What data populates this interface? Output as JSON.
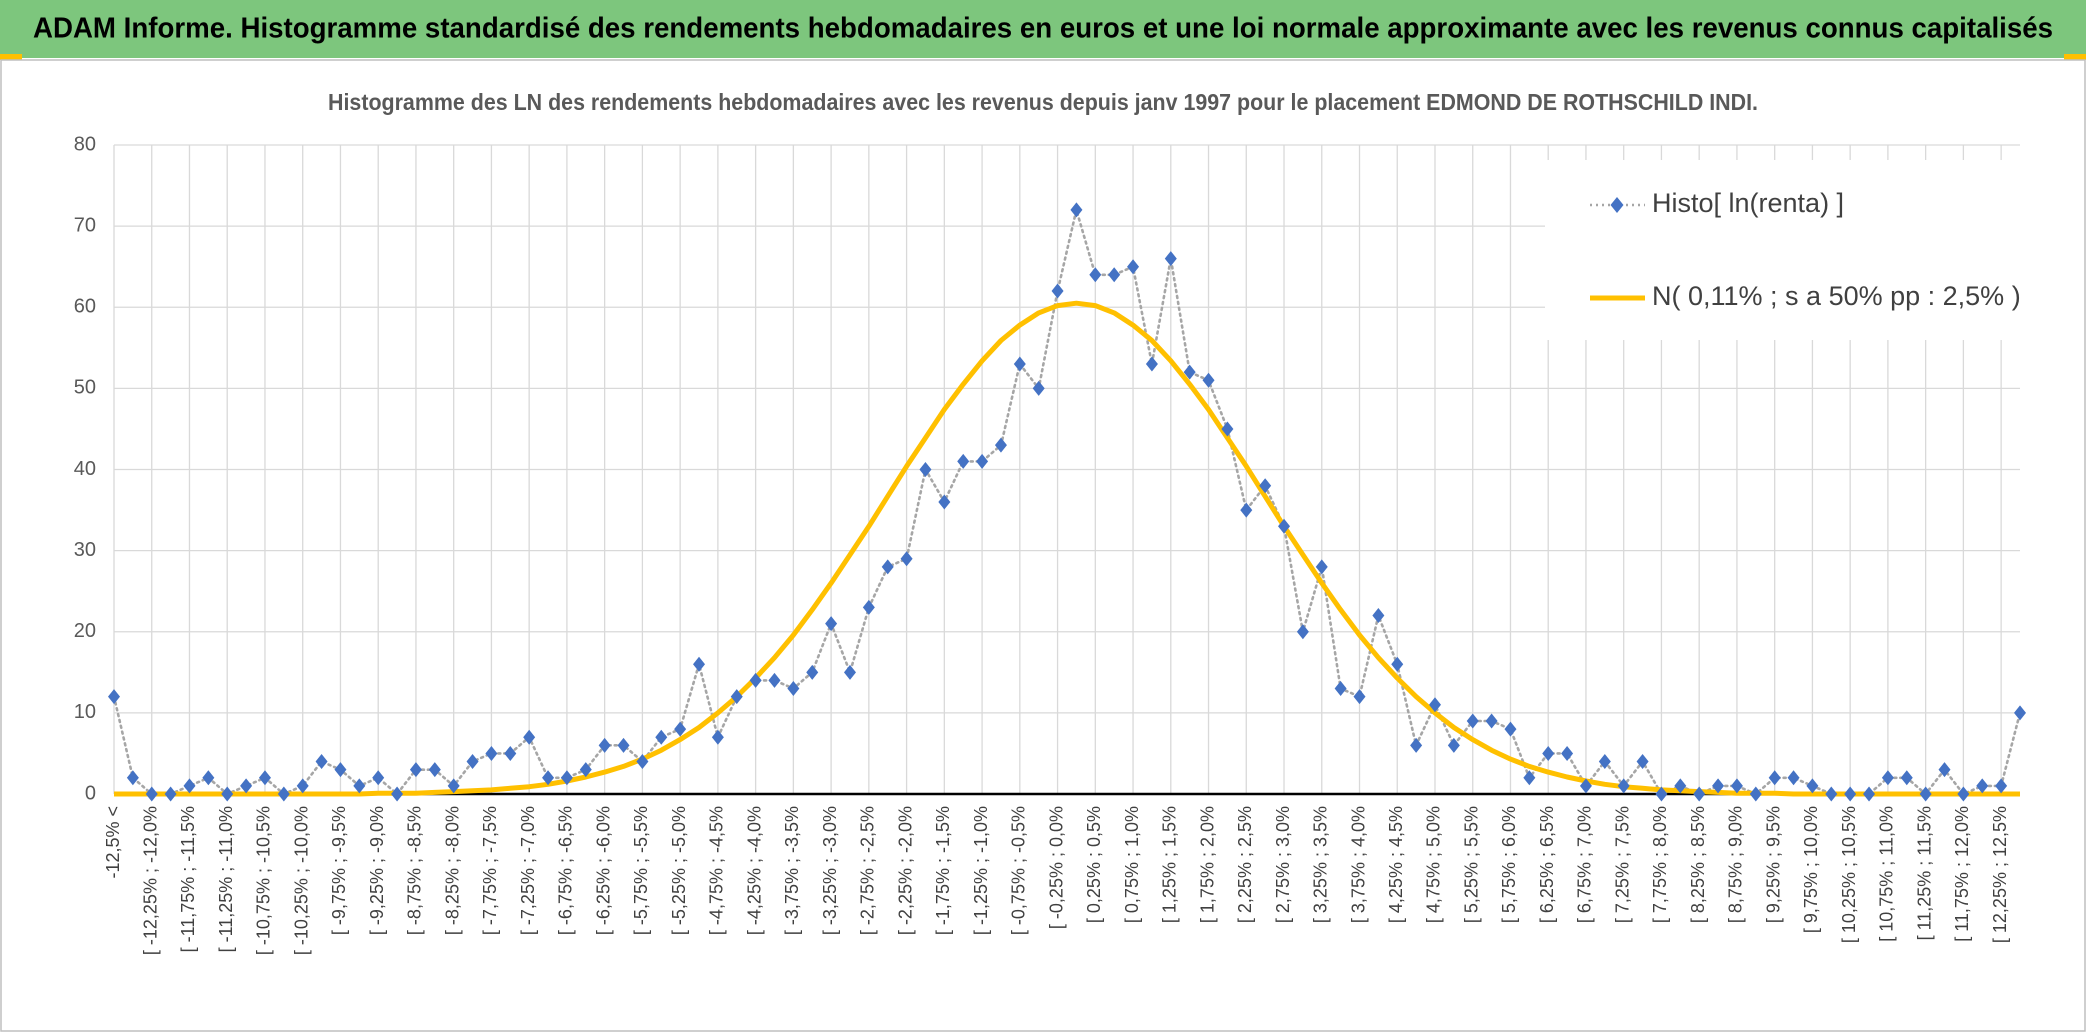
{
  "header": {
    "title": "ADAM Informe. Histogramme standardisé des rendements hebdomadaires en euros et une loi normale approximante avec les revenus connus capitalisés"
  },
  "chart_data": {
    "type": "line",
    "title": "Histogramme des LN des rendements hebdomadaires avec les revenus depuis janv 1997 pour le placement EDMOND DE ROTHSCHILD INDI.",
    "categories": [
      "-12,5% <",
      null,
      "[ -12,25% ; -12,0%",
      null,
      "[ -11,75% ; -11,5%",
      null,
      "[ -11,25% ; -11,0%",
      null,
      "[ -10,75% ; -10,5%",
      null,
      "[ -10,25% ; -10,0%",
      null,
      "[ -9,75% ; -9,5%",
      null,
      "[ -9,25% ; -9,0%",
      null,
      "[ -8,75% ; -8,5%",
      null,
      "[ -8,25% ; -8,0%",
      null,
      "[ -7,75% ; -7,5%",
      null,
      "[ -7,25% ; -7,0%",
      null,
      "[ -6,75% ; -6,5%",
      null,
      "[ -6,25% ; -6,0%",
      null,
      "[ -5,75% ; -5,5%",
      null,
      "[ -5,25% ; -5,0%",
      null,
      "[ -4,75% ; -4,5%",
      null,
      "[ -4,25% ; -4,0%",
      null,
      "[ -3,75% ; -3,5%",
      null,
      "[ -3,25% ; -3,0%",
      null,
      "[ -2,75% ; -2,5%",
      null,
      "[ -2,25% ; -2,0%",
      null,
      "[ -1,75% ; -1,5%",
      null,
      "[ -1,25% ; -1,0%",
      null,
      "[ -0,75% ; -0,5%",
      null,
      "[ -0,25% ; 0,0%",
      null,
      "[ 0,25% ; 0,5%",
      null,
      "[ 0,75% ; 1,0%",
      null,
      "[ 1,25% ; 1,5%",
      null,
      "[ 1,75% ; 2,0%",
      null,
      "[ 2,25% ; 2,5%",
      null,
      "[ 2,75% ; 3,0%",
      null,
      "[ 3,25% ; 3,5%",
      null,
      "[ 3,75% ; 4,0%",
      null,
      "[ 4,25% ; 4,5%",
      null,
      "[ 4,75% ; 5,0%",
      null,
      "[ 5,25% ; 5,5%",
      null,
      "[ 5,75% ; 6,0%",
      null,
      "[ 6,25% ; 6,5%",
      null,
      "[ 6,75% ; 7,0%",
      null,
      "[ 7,25% ; 7,5%",
      null,
      "[ 7,75% ; 8,0%",
      null,
      "[ 8,25% ; 8,5%",
      null,
      "[ 8,75% ; 9,0%",
      null,
      "[ 9,25% ; 9,5%",
      null,
      "[ 9,75% ; 10,0%",
      null,
      "[ 10,25% ; 10,5%",
      null,
      "[ 10,75% ; 11,0%",
      null,
      "[ 11,25% ; 11,5%",
      null,
      "[ 11,75% ; 12,0%",
      null,
      "[ 12,25% ; 12,5%",
      null
    ],
    "series": [
      {
        "name": "Histo[ ln(renta) ]",
        "color": "#4472c4",
        "line_color": "#a6a6a6",
        "values": [
          12,
          2,
          0,
          0,
          1,
          2,
          0,
          1,
          2,
          0,
          1,
          4,
          3,
          1,
          2,
          0,
          3,
          3,
          1,
          4,
          5,
          5,
          7,
          2,
          2,
          3,
          6,
          6,
          4,
          7,
          8,
          16,
          7,
          12,
          14,
          14,
          13,
          15,
          21,
          15,
          23,
          28,
          29,
          40,
          36,
          41,
          41,
          43,
          53,
          50,
          62,
          72,
          64,
          64,
          65,
          53,
          66,
          52,
          51,
          45,
          35,
          38,
          33,
          20,
          28,
          13,
          12,
          22,
          16,
          6,
          11,
          6,
          9,
          9,
          8,
          2,
          5,
          5,
          1,
          4,
          1,
          4,
          0,
          1,
          0,
          1,
          1,
          0,
          2,
          2,
          1,
          0,
          0,
          0,
          2,
          2,
          0,
          3,
          0,
          1,
          1,
          10
        ]
      },
      {
        "name": "N( 0,11% ; s a 50% pp : 2,5% )",
        "color": "#ffc000",
        "values": [
          0,
          0,
          0,
          0,
          0,
          0,
          0,
          0,
          0,
          0,
          0,
          0,
          0,
          0,
          0.1,
          0.1,
          0.1,
          0.2,
          0.3,
          0.4,
          0.5,
          0.7,
          0.9,
          1.2,
          1.6,
          2.1,
          2.7,
          3.4,
          4.3,
          5.4,
          6.7,
          8.2,
          10,
          12,
          14.3,
          16.8,
          19.6,
          22.7,
          26,
          29.5,
          33,
          36.7,
          40.4,
          43.9,
          47.4,
          50.5,
          53.4,
          55.9,
          57.8,
          59.3,
          60.2,
          60.5,
          60.2,
          59.3,
          57.8,
          55.9,
          53.4,
          50.5,
          47.4,
          43.9,
          40.4,
          36.7,
          33,
          29.5,
          26,
          22.7,
          19.6,
          16.8,
          14.3,
          12,
          10,
          8.2,
          6.7,
          5.4,
          4.3,
          3.4,
          2.7,
          2.1,
          1.6,
          1.2,
          0.9,
          0.7,
          0.5,
          0.4,
          0.3,
          0.2,
          0.1,
          0.1,
          0.1,
          0,
          0,
          0,
          0,
          0,
          0,
          0,
          0,
          0,
          0,
          0,
          0,
          0
        ]
      }
    ],
    "ylim": [
      0,
      80
    ],
    "yticks": [
      0,
      10,
      20,
      30,
      40,
      50,
      60,
      70,
      80
    ],
    "grid": true,
    "legend": "upper-right"
  }
}
